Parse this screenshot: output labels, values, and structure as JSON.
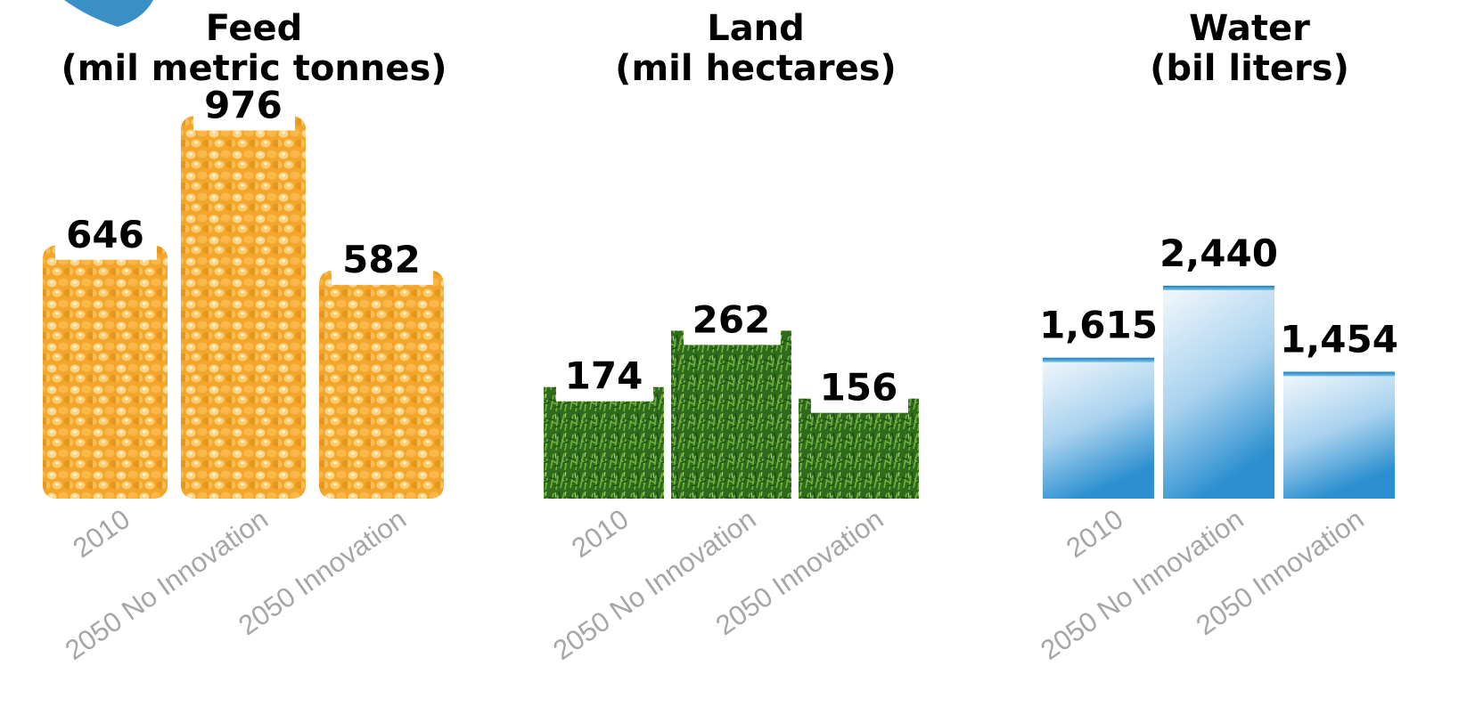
{
  "chart_data": [
    {
      "type": "bar",
      "title_lines": [
        "Feed",
        "(mil metric tonnes)"
      ],
      "categories": [
        "2010",
        "2050 No Innovation",
        "2050 Innovation"
      ],
      "values": [
        646,
        976,
        582
      ],
      "value_labels": [
        "646",
        "976",
        "582"
      ],
      "ylim": [
        0,
        1000
      ],
      "grid": false,
      "legend": "none",
      "texture": "corn",
      "colors": {
        "base": "#f4a623",
        "light": "#ffd27a",
        "dark": "#c97a0e"
      }
    },
    {
      "type": "bar",
      "title_lines": [
        "Land",
        "(mil hectares)"
      ],
      "categories": [
        "2010",
        "2050 No Innovation",
        "2050 Innovation"
      ],
      "values": [
        174,
        262,
        156
      ],
      "value_labels": [
        "174",
        "262",
        "156"
      ],
      "ylim": [
        0,
        1000
      ],
      "grid": false,
      "legend": "none",
      "texture": "grass",
      "colors": {
        "base": "#2f6e1d",
        "light": "#7fbf4a",
        "dark": "#163d0c"
      }
    },
    {
      "type": "bar",
      "title_lines": [
        "Water",
        "(bil liters)"
      ],
      "categories": [
        "2010",
        "2050 No Innovation",
        "2050 Innovation"
      ],
      "values": [
        1615,
        2440,
        1454
      ],
      "value_labels": [
        "1,615",
        "2,440",
        "1,454"
      ],
      "ylim": [
        0,
        4000
      ],
      "grid": false,
      "legend": "none",
      "texture": "water",
      "colors": {
        "base": "#2b8fd0",
        "light": "#e6f2fb",
        "dark": "#1a6fa8"
      }
    }
  ],
  "decoration": {
    "corner_badge_color": "#3a8fc4"
  }
}
